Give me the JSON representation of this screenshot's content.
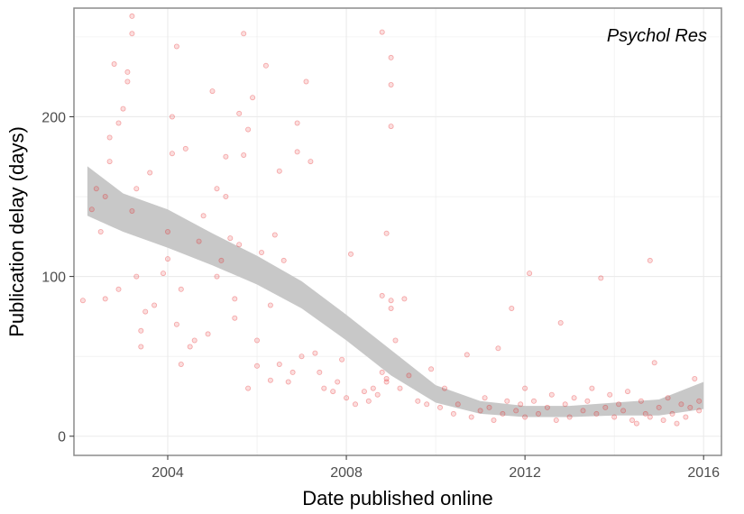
{
  "chart_data": {
    "type": "scatter",
    "annotation": "Psychol Res",
    "xlabel": "Date published online",
    "ylabel": "Publication delay (days)",
    "xlim": [
      2001.9,
      2016.4
    ],
    "ylim": [
      -12,
      268
    ],
    "x_ticks": [
      2004,
      2008,
      2012,
      2016
    ],
    "x_tick_labels": [
      "2004",
      "2008",
      "2012",
      "2016"
    ],
    "y_ticks": [
      0,
      100,
      200
    ],
    "y_tick_labels": [
      "0",
      "100",
      "200"
    ],
    "grid": true,
    "colors": {
      "points": "#e41a1c",
      "smooth_band": "#c8c8c8",
      "panel_border": "#8c8c8c",
      "grid": "#ebebeb"
    },
    "smooth_band": {
      "x": [
        2002.2,
        2003,
        2004,
        2005,
        2006,
        2007,
        2008,
        2009,
        2010,
        2011,
        2012,
        2013,
        2014,
        2015,
        2016
      ],
      "lower": [
        138,
        128,
        118,
        107,
        95,
        80,
        60,
        38,
        21,
        14,
        12,
        12,
        13,
        13,
        17
      ],
      "upper": [
        169,
        152,
        142,
        127,
        113,
        97,
        76,
        54,
        32,
        22,
        19,
        19,
        21,
        23,
        34
      ]
    },
    "points": [
      [
        2002.1,
        85
      ],
      [
        2002.3,
        142
      ],
      [
        2002.4,
        155
      ],
      [
        2002.5,
        128
      ],
      [
        2002.6,
        150
      ],
      [
        2002.6,
        86
      ],
      [
        2002.7,
        172
      ],
      [
        2002.7,
        187
      ],
      [
        2002.8,
        233
      ],
      [
        2002.9,
        92
      ],
      [
        2002.9,
        196
      ],
      [
        2003.0,
        205
      ],
      [
        2003.1,
        222
      ],
      [
        2003.1,
        228
      ],
      [
        2003.2,
        263
      ],
      [
        2003.2,
        252
      ],
      [
        2003.2,
        141
      ],
      [
        2003.3,
        155
      ],
      [
        2003.3,
        100
      ],
      [
        2003.4,
        66
      ],
      [
        2003.4,
        56
      ],
      [
        2003.5,
        78
      ],
      [
        2003.6,
        165
      ],
      [
        2003.7,
        82
      ],
      [
        2003.9,
        102
      ],
      [
        2004.0,
        128
      ],
      [
        2004.0,
        111
      ],
      [
        2004.1,
        200
      ],
      [
        2004.1,
        177
      ],
      [
        2004.2,
        70
      ],
      [
        2004.2,
        244
      ],
      [
        2004.3,
        45
      ],
      [
        2004.3,
        92
      ],
      [
        2004.4,
        180
      ],
      [
        2004.5,
        56
      ],
      [
        2004.6,
        60
      ],
      [
        2004.7,
        122
      ],
      [
        2004.8,
        138
      ],
      [
        2004.9,
        64
      ],
      [
        2005.0,
        216
      ],
      [
        2005.1,
        155
      ],
      [
        2005.1,
        100
      ],
      [
        2005.2,
        110
      ],
      [
        2005.3,
        175
      ],
      [
        2005.3,
        150
      ],
      [
        2005.4,
        124
      ],
      [
        2005.5,
        74
      ],
      [
        2005.5,
        86
      ],
      [
        2005.6,
        202
      ],
      [
        2005.6,
        120
      ],
      [
        2005.7,
        252
      ],
      [
        2005.7,
        176
      ],
      [
        2005.8,
        30
      ],
      [
        2005.8,
        192
      ],
      [
        2005.9,
        212
      ],
      [
        2006.0,
        60
      ],
      [
        2006.0,
        44
      ],
      [
        2006.1,
        115
      ],
      [
        2006.2,
        232
      ],
      [
        2006.3,
        35
      ],
      [
        2006.3,
        82
      ],
      [
        2006.4,
        126
      ],
      [
        2006.5,
        45
      ],
      [
        2006.5,
        166
      ],
      [
        2006.6,
        110
      ],
      [
        2006.7,
        34
      ],
      [
        2006.8,
        40
      ],
      [
        2006.9,
        178
      ],
      [
        2006.9,
        196
      ],
      [
        2007.0,
        50
      ],
      [
        2007.1,
        222
      ],
      [
        2007.2,
        172
      ],
      [
        2007.3,
        52
      ],
      [
        2007.4,
        40
      ],
      [
        2007.5,
        30
      ],
      [
        2007.7,
        28
      ],
      [
        2007.8,
        34
      ],
      [
        2007.9,
        48
      ],
      [
        2008.0,
        24
      ],
      [
        2008.1,
        114
      ],
      [
        2008.2,
        20
      ],
      [
        2008.4,
        28
      ],
      [
        2008.5,
        22
      ],
      [
        2008.6,
        30
      ],
      [
        2008.7,
        26
      ],
      [
        2008.8,
        253
      ],
      [
        2008.8,
        40
      ],
      [
        2008.8,
        88
      ],
      [
        2008.9,
        34
      ],
      [
        2008.9,
        127
      ],
      [
        2008.9,
        36
      ],
      [
        2009.0,
        194
      ],
      [
        2009.0,
        220
      ],
      [
        2009.0,
        237
      ],
      [
        2009.0,
        85
      ],
      [
        2009.0,
        80
      ],
      [
        2009.1,
        60
      ],
      [
        2009.2,
        30
      ],
      [
        2009.3,
        86
      ],
      [
        2009.4,
        38
      ],
      [
        2009.6,
        22
      ],
      [
        2009.8,
        20
      ],
      [
        2009.9,
        42
      ],
      [
        2010.1,
        18
      ],
      [
        2010.2,
        30
      ],
      [
        2010.4,
        14
      ],
      [
        2010.5,
        20
      ],
      [
        2010.7,
        51
      ],
      [
        2010.8,
        12
      ],
      [
        2011.0,
        16
      ],
      [
        2011.1,
        24
      ],
      [
        2011.2,
        18
      ],
      [
        2011.3,
        10
      ],
      [
        2011.4,
        55
      ],
      [
        2011.5,
        14
      ],
      [
        2011.6,
        22
      ],
      [
        2011.7,
        80
      ],
      [
        2011.8,
        16
      ],
      [
        2011.9,
        20
      ],
      [
        2012.0,
        12
      ],
      [
        2012.0,
        30
      ],
      [
        2012.1,
        102
      ],
      [
        2012.2,
        22
      ],
      [
        2012.3,
        14
      ],
      [
        2012.5,
        18
      ],
      [
        2012.6,
        26
      ],
      [
        2012.7,
        10
      ],
      [
        2012.8,
        71
      ],
      [
        2012.9,
        20
      ],
      [
        2013.0,
        12
      ],
      [
        2013.1,
        24
      ],
      [
        2013.3,
        16
      ],
      [
        2013.4,
        22
      ],
      [
        2013.5,
        30
      ],
      [
        2013.6,
        14
      ],
      [
        2013.7,
        99
      ],
      [
        2013.8,
        18
      ],
      [
        2013.9,
        26
      ],
      [
        2014.0,
        12
      ],
      [
        2014.1,
        20
      ],
      [
        2014.2,
        16
      ],
      [
        2014.3,
        28
      ],
      [
        2014.4,
        10
      ],
      [
        2014.5,
        8
      ],
      [
        2014.6,
        22
      ],
      [
        2014.7,
        14
      ],
      [
        2014.8,
        110
      ],
      [
        2014.8,
        12
      ],
      [
        2014.9,
        46
      ],
      [
        2015.0,
        18
      ],
      [
        2015.1,
        10
      ],
      [
        2015.2,
        24
      ],
      [
        2015.3,
        14
      ],
      [
        2015.4,
        8
      ],
      [
        2015.5,
        20
      ],
      [
        2015.6,
        12
      ],
      [
        2015.7,
        18
      ],
      [
        2015.8,
        36
      ],
      [
        2015.9,
        22
      ],
      [
        2015.9,
        16
      ]
    ]
  }
}
